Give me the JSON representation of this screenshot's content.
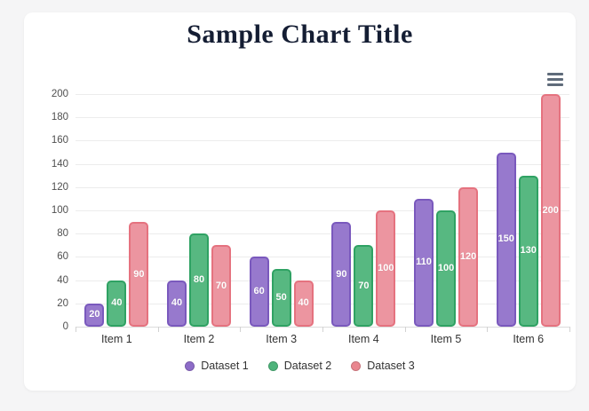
{
  "page": {
    "title": "Sample Chart Title"
  },
  "toolbar": {
    "menu_icon": "hamburger-menu-icon"
  },
  "chart_data": {
    "type": "bar",
    "title": "Sample Chart Title",
    "categories": [
      "Item 1",
      "Item 2",
      "Item 3",
      "Item 4",
      "Item 5",
      "Item 6"
    ],
    "series": [
      {
        "name": "Dataset 1",
        "values": [
          20,
          40,
          60,
          90,
          110,
          150
        ],
        "fill": "#9779cd",
        "border": "#7a59bd",
        "marker": "#8d6cc8"
      },
      {
        "name": "Dataset 2",
        "values": [
          40,
          80,
          50,
          70,
          100,
          130
        ],
        "fill": "#57b881",
        "border": "#2fa263",
        "marker": "#4db37a"
      },
      {
        "name": "Dataset 3",
        "values": [
          90,
          70,
          40,
          100,
          120,
          200
        ],
        "fill": "#ec95a0",
        "border": "#e5727f",
        "marker": "#e9868f"
      }
    ],
    "xlabel": "",
    "ylabel": "",
    "ylim": [
      0,
      200
    ],
    "ytick_step": 20,
    "grid": true,
    "legend_position": "bottom",
    "data_labels": true,
    "data_label_color": "#ffffff"
  },
  "colors": {
    "page_background": "#f5f5f6",
    "card_background": "#ffffff",
    "title_text": "#141d33",
    "gridline": "#ececec",
    "axis_line": "#dcdcdc",
    "axis_text": "#4f4f4f",
    "category_text": "#333333",
    "legend_text": "#333333"
  }
}
